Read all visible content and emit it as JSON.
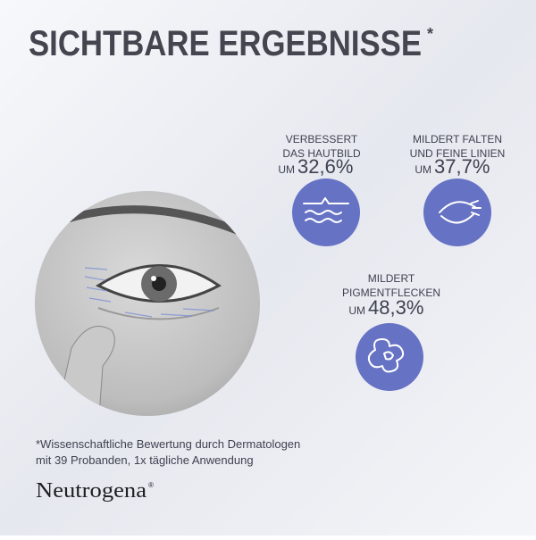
{
  "header": {
    "title": "SICHTBARE ERGEBNISSE",
    "title_mark": "*"
  },
  "stats": [
    {
      "label_lines": [
        "VERBESSERT",
        "DAS HAUTBILD"
      ],
      "prefix": "UM",
      "value": "32,6%"
    },
    {
      "label_lines": [
        "MILDERT FALTEN",
        "UND FEINE LINIEN"
      ],
      "prefix": "UM",
      "value": "37,7%"
    },
    {
      "label_lines": [
        "MILDERT",
        "PIGMENTFLECKEN"
      ],
      "prefix": "UM",
      "value": "48,3%"
    }
  ],
  "footnote_lines": [
    "*Wissenschaftliche Bewertung durch Dermatologen",
    "mit 39 Probanden, 1x tägliche Anwendung"
  ],
  "brand": {
    "name": "Neutrogena",
    "mark": "®"
  }
}
